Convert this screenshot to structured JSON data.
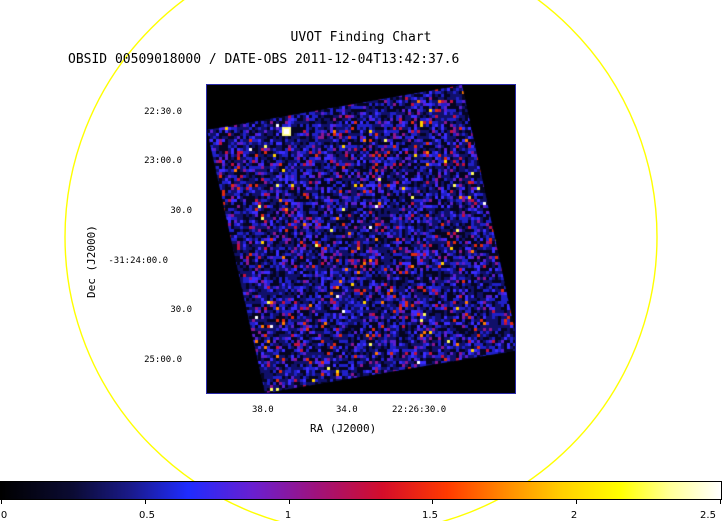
{
  "chart": {
    "title": "UVOT Finding Chart",
    "subtitle": "OBSID 00509018000 / DATE-OBS 2011-12-04T13:42:37.6",
    "xlabel": "RA (J2000)",
    "ylabel": "Dec (J2000)",
    "dec_ticks": [
      "22:30.0",
      "23:00.0",
      "30.0",
      "-31:24:00.0",
      "30.0",
      "25:00.0"
    ],
    "ra_ticks": [
      "38.0",
      "34.0",
      "22:26:30.0"
    ]
  },
  "colorbar": {
    "ticks": [
      "0",
      "0.5",
      "1",
      "1.5",
      "2",
      "2.5"
    ]
  },
  "colors": {
    "circle": "#ffff00",
    "frame": "#2a2aa8"
  }
}
